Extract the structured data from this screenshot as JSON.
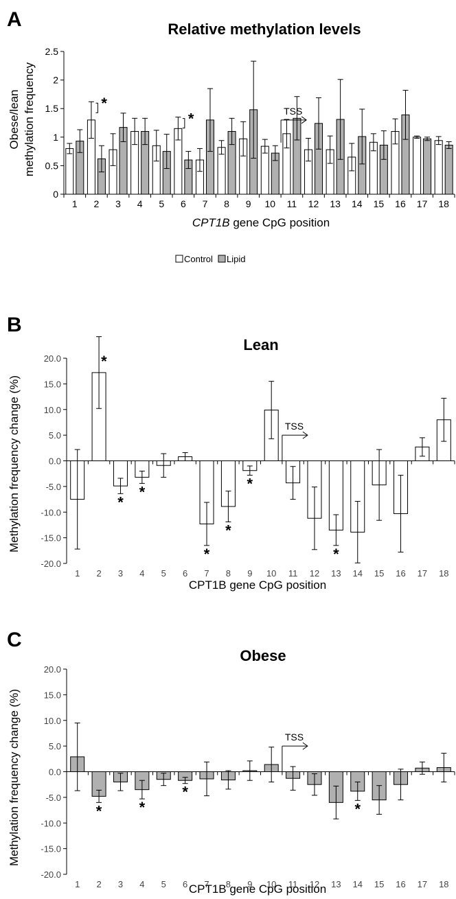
{
  "chart_data": [
    {
      "panel_label": "A",
      "type": "bar",
      "title": "Relative methylation levels",
      "ylabel_lines": [
        "Obese/lean",
        "methylation frequency"
      ],
      "xlabel_italic": "CPT1B",
      "xlabel_rest": " gene CpG position",
      "categories": [
        "1",
        "2",
        "3",
        "4",
        "5",
        "6",
        "7",
        "8",
        "9",
        "10",
        "11",
        "12",
        "13",
        "14",
        "15",
        "16",
        "17",
        "18"
      ],
      "ylim": [
        0,
        2.5
      ],
      "yticks": [
        0,
        0.5,
        1,
        1.5,
        2,
        2.5
      ],
      "ytick_labels": [
        "0",
        "0.5",
        "1",
        "1.5",
        "2",
        "2.5"
      ],
      "series": [
        {
          "name": "Control",
          "color": "#ffffff",
          "values": [
            0.8,
            1.3,
            0.78,
            1.1,
            0.85,
            1.15,
            0.6,
            0.82,
            0.97,
            0.84,
            1.06,
            0.78,
            0.78,
            0.65,
            0.91,
            1.1,
            1.0,
            0.94
          ],
          "errors": [
            0.09,
            0.32,
            0.28,
            0.23,
            0.27,
            0.2,
            0.2,
            0.12,
            0.3,
            0.12,
            0.25,
            0.2,
            0.24,
            0.24,
            0.15,
            0.22,
            0.02,
            0.07
          ]
        },
        {
          "name": "Lipid",
          "color": "#b0b0b0",
          "values": [
            0.93,
            0.62,
            1.17,
            1.1,
            0.75,
            0.6,
            1.3,
            1.1,
            1.48,
            0.72,
            1.33,
            1.24,
            1.31,
            1.01,
            0.86,
            1.39,
            0.97,
            0.86
          ],
          "errors": [
            0.2,
            0.23,
            0.25,
            0.23,
            0.3,
            0.15,
            0.55,
            0.23,
            0.85,
            0.13,
            0.38,
            0.45,
            0.7,
            0.48,
            0.25,
            0.43,
            0.03,
            0.06
          ]
        }
      ],
      "significance": [
        {
          "category": "2",
          "label": "*"
        },
        {
          "category": "6",
          "label": "*"
        }
      ],
      "tss": {
        "label": "TSS",
        "after_category": "10",
        "value": 1.3
      },
      "legend_position": "bottom-center",
      "grid": false
    },
    {
      "panel_label": "B",
      "type": "bar",
      "title": "Lean",
      "ylabel": "Methylation frequency change (%)",
      "xlabel": "CPT1B gene CpG position",
      "categories": [
        "1",
        "2",
        "3",
        "4",
        "5",
        "6",
        "7",
        "8",
        "9",
        "10",
        "11",
        "12",
        "13",
        "14",
        "15",
        "16",
        "17",
        "18"
      ],
      "ylim": [
        -20,
        20
      ],
      "yticks": [
        -20,
        -15,
        -10,
        -5,
        0,
        5,
        10,
        15,
        20
      ],
      "ytick_labels": [
        "-20.0",
        "-15.0",
        "-10.0",
        "-5.0",
        "0.0",
        "5.0",
        "10.0",
        "15.0",
        "20.0"
      ],
      "series": [
        {
          "color": "#ffffff",
          "values": [
            -7.5,
            17.2,
            -4.9,
            -3.2,
            -0.9,
            0.8,
            -12.3,
            -8.9,
            -1.9,
            9.9,
            -4.3,
            -11.2,
            -13.5,
            -13.9,
            -4.7,
            -10.3,
            2.7,
            8.0
          ],
          "errors": [
            9.7,
            7.0,
            1.5,
            1.2,
            2.3,
            0.8,
            4.2,
            3.0,
            0.9,
            5.6,
            3.2,
            6.1,
            3.0,
            6.0,
            6.9,
            7.5,
            1.8,
            4.2
          ]
        }
      ],
      "significance": [
        {
          "category": "2",
          "label": "*"
        },
        {
          "category": "3",
          "label": "*"
        },
        {
          "category": "4",
          "label": "*"
        },
        {
          "category": "7",
          "label": "*"
        },
        {
          "category": "8",
          "label": "*"
        },
        {
          "category": "9",
          "label": "*"
        },
        {
          "category": "13",
          "label": "*"
        }
      ],
      "tss": {
        "label": "TSS",
        "after_category": "10",
        "value": 5.0
      },
      "grid": false
    },
    {
      "panel_label": "C",
      "type": "bar",
      "title": "Obese",
      "ylabel": "Methylation frequency change (%)",
      "xlabel": "CPT1B gene CpG position",
      "categories": [
        "1",
        "2",
        "3",
        "4",
        "5",
        "6",
        "7",
        "8",
        "9",
        "10",
        "11",
        "12",
        "13",
        "14",
        "15",
        "16",
        "17",
        "18"
      ],
      "ylim": [
        -20,
        20
      ],
      "yticks": [
        -20,
        -15,
        -10,
        -5,
        0,
        5,
        10,
        15,
        20
      ],
      "ytick_labels": [
        "-20.0",
        "-15.0",
        "-10.0",
        "-5.0",
        "0.0",
        "5.0",
        "10.0",
        "15.0",
        "20.0"
      ],
      "series": [
        {
          "color": "#b0b0b0",
          "values": [
            2.9,
            -4.8,
            -2.0,
            -3.5,
            -1.5,
            -1.7,
            -1.4,
            -1.6,
            0.2,
            1.4,
            -1.3,
            -2.5,
            -6.0,
            -3.8,
            -5.5,
            -2.5,
            0.7,
            0.8
          ],
          "errors": [
            6.6,
            1.2,
            1.7,
            1.8,
            1.2,
            0.6,
            3.3,
            1.8,
            1.9,
            3.4,
            2.3,
            2.1,
            3.2,
            1.8,
            2.8,
            3.0,
            1.2,
            2.8
          ]
        }
      ],
      "significance": [
        {
          "category": "2",
          "label": "*"
        },
        {
          "category": "4",
          "label": "*"
        },
        {
          "category": "6",
          "label": "*"
        },
        {
          "category": "14",
          "label": "*"
        }
      ],
      "tss": {
        "label": "TSS",
        "after_category": "10",
        "value": 5.0
      },
      "grid": false
    }
  ]
}
